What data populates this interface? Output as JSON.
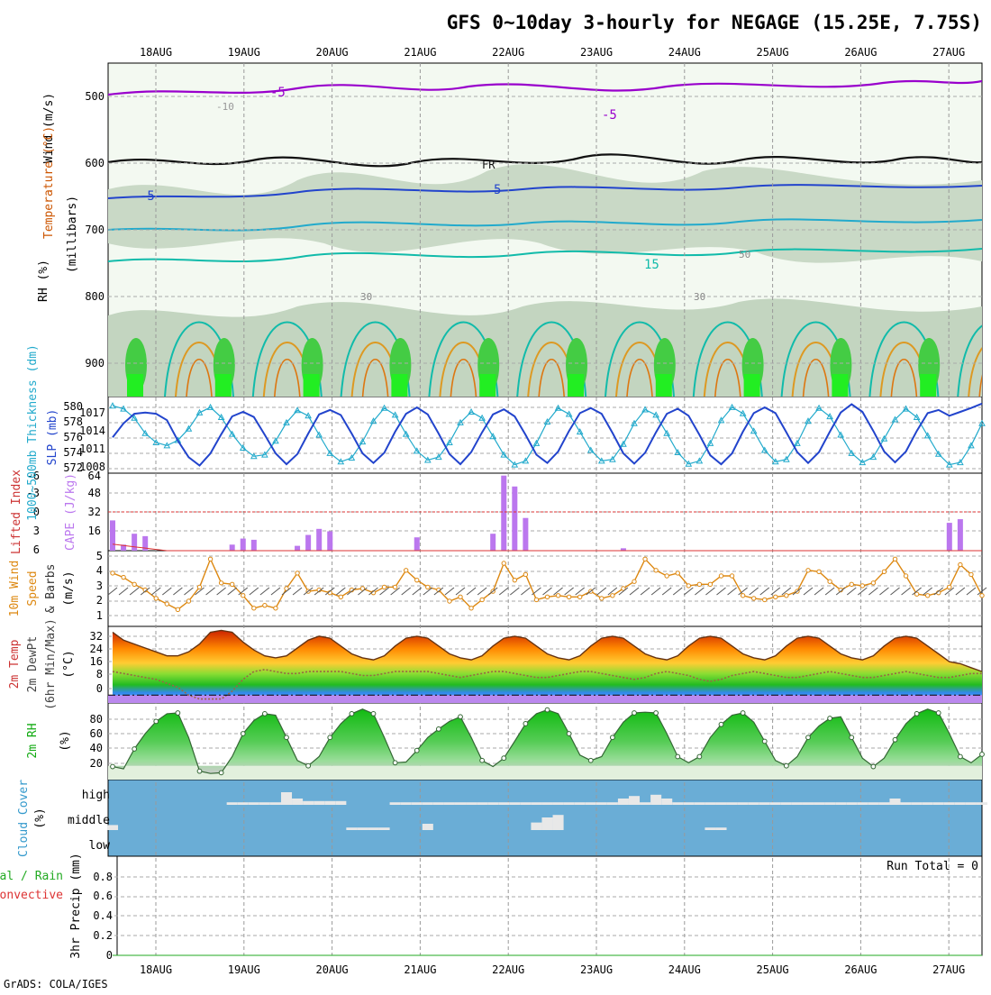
{
  "title": "GFS 0~10day 3-hourly for NEGAGE (15.25E, 7.75S)",
  "footer": "GrADS: COLA/IGES",
  "colors": {
    "rh_green": "#33cc33",
    "rh_light": "#e6f2e1",
    "rh_gray": "#bfcfbf",
    "purple": "#9900cc",
    "blue": "#2244cc",
    "cyan": "#22aacc",
    "teal": "#11bbaa",
    "orange": "#dd8811",
    "red": "#dd3333",
    "cloud_bg": "#6aadd6",
    "violet": "#bb77ee"
  },
  "x_dates": [
    "18AUG",
    "19AUG",
    "20AUG",
    "21AUG",
    "22AUG",
    "23AUG",
    "24AUG",
    "25AUG",
    "26AUG",
    "27AUG"
  ],
  "panel1": {
    "labels": {
      "wind": "Wind (m/s)",
      "temp": "Temperature (°C)",
      "rh": "RH (%)",
      "units": "(millibars)"
    },
    "y_ticks": [
      "500",
      "600",
      "700",
      "800",
      "900"
    ],
    "contour_labels": [
      "-5",
      "-10",
      "-5",
      "FR",
      "5",
      "15",
      "30",
      "50",
      "30",
      "-5"
    ]
  },
  "panel2": {
    "labels": {
      "thick": "1000~500mb Thickness (dm)",
      "slp": "SLP (mb)"
    },
    "left_ticks": [
      "580",
      "578",
      "576",
      "574",
      "572"
    ],
    "right_ticks": [
      "1017",
      "1014",
      "1011",
      "1008"
    ]
  },
  "panel3": {
    "labels": {
      "li": "Lifted Index",
      "cape": "CAPE (J/kg)"
    },
    "left_ticks": [
      "-6",
      "-3",
      "0",
      "3",
      "6"
    ],
    "right_ticks": [
      "64",
      "48",
      "32",
      "16"
    ]
  },
  "panel4": {
    "labels": {
      "wind": "10m Wind",
      "speed": "Speed",
      "barbs": "& Barbs",
      "units": "(m/s)"
    },
    "y_ticks": [
      "5",
      "4",
      "3",
      "2",
      "1"
    ]
  },
  "panel5": {
    "labels": {
      "temp": "2m Temp",
      "dew": "2m DewPt",
      "minmax": "(6hr Min/Max)",
      "units": "(°C)"
    },
    "y_ticks": [
      "32",
      "24",
      "16",
      "8",
      "0"
    ]
  },
  "panel6": {
    "labels": {
      "rh": "2m RH",
      "units": "(%)"
    },
    "y_ticks": [
      "80",
      "60",
      "40",
      "20"
    ]
  },
  "panel7": {
    "labels": {
      "cc": "Cloud Cover",
      "units": "(%)"
    },
    "levels": [
      "high",
      "middle",
      "low"
    ]
  },
  "panel8": {
    "labels": {
      "total": "Total / Rain",
      "conv": "Convective",
      "precip": "3hr Precip (mm)"
    },
    "run_total": "Run Total = 0",
    "y_ticks": [
      "0.8",
      "0.6",
      "0.4",
      "0.2",
      "0"
    ]
  },
  "chart_data": {
    "type": "line",
    "time_step_hours": 3,
    "n_steps": 81,
    "x_range_days": [
      0,
      10
    ],
    "thickness_dm": [
      579.8,
      579.4,
      578.2,
      576.2,
      575.0,
      574.6,
      575.3,
      576.8,
      578.9,
      579.6,
      578.3,
      576.1,
      574.3,
      573.2,
      573.4,
      575.2,
      577.6,
      579.2,
      578.5,
      576.0,
      573.6,
      572.5,
      573.0,
      575.1,
      577.8,
      579.5,
      578.6,
      576.1,
      573.9,
      572.7,
      573.1,
      575.0,
      577.6,
      579.0,
      578.2,
      575.8,
      573.4,
      572.1,
      572.6,
      574.9,
      577.7,
      579.5,
      578.7,
      576.4,
      574.0,
      572.6,
      572.8,
      574.8,
      577.5,
      579.3,
      578.6,
      576.2,
      573.7,
      572.2,
      572.6,
      574.9,
      577.9,
      579.6,
      578.8,
      576.5,
      574.0,
      572.5,
      572.8,
      574.9,
      577.8,
      579.5,
      578.4,
      576.0,
      573.6,
      572.4,
      573.1,
      575.5,
      578.0,
      579.4,
      578.3,
      575.9,
      573.5,
      572.1,
      572.4,
      574.6,
      577.5
    ],
    "slp_mb": [
      1012.6,
      1014.8,
      1016.3,
      1016.5,
      1016.3,
      1015.3,
      1012.1,
      1009.5,
      1008.2,
      1010.1,
      1013.1,
      1015.9,
      1016.6,
      1015.8,
      1013.0,
      1010.1,
      1008.4,
      1010.0,
      1013.2,
      1016.2,
      1016.9,
      1016.1,
      1013.2,
      1010.1,
      1008.6,
      1010.2,
      1013.5,
      1016.3,
      1017.3,
      1016.2,
      1013.2,
      1010.0,
      1008.4,
      1010.3,
      1013.4,
      1016.2,
      1017.0,
      1015.9,
      1013.0,
      1009.9,
      1008.6,
      1010.4,
      1013.6,
      1016.4,
      1017.2,
      1016.3,
      1013.3,
      1010.1,
      1008.5,
      1010.2,
      1013.4,
      1016.3,
      1017.1,
      1016.0,
      1013.0,
      1009.8,
      1008.4,
      1010.1,
      1013.5,
      1016.4,
      1017.3,
      1016.4,
      1013.4,
      1010.3,
      1008.6,
      1010.3,
      1013.5,
      1016.5,
      1017.8,
      1016.6,
      1013.6,
      1010.4,
      1008.7,
      1010.4,
      1013.6,
      1016.4,
      1016.9,
      1016.0,
      1016.6,
      1017.2,
      1017.9
    ],
    "lifted_index": [
      5.0,
      5.2,
      5.4,
      5.6,
      5.8,
      6.0,
      6.0,
      6.0,
      6.0,
      6.0,
      6.0,
      6.0,
      6.0,
      6.0,
      6.0,
      6.0,
      6.0,
      6.0,
      6.0,
      6.0,
      6.0,
      6.0,
      6.0,
      6.0,
      6.0,
      6.0,
      6.0,
      6.0,
      6.0,
      6.0,
      6.0,
      6.0,
      6.0,
      6.0,
      6.0,
      6.0,
      6.0,
      6.0,
      6.0,
      6.0,
      6.0,
      6.0,
      6.0,
      6.0,
      6.0,
      6.0,
      6.0,
      6.0,
      6.0,
      6.0,
      6.0,
      6.0,
      6.0,
      6.0,
      6.0,
      6.0,
      6.0,
      6.0,
      6.0,
      6.0,
      6.0,
      6.0,
      6.0,
      6.0,
      6.0,
      6.0,
      6.0,
      6.0,
      6.0,
      6.0,
      6.0,
      6.0,
      6.0,
      6.0,
      6.0,
      6.0,
      6.0,
      6.0,
      6.0,
      6.0,
      6.0
    ],
    "cape_jkg": [
      25,
      5,
      14,
      12,
      0,
      0,
      0,
      0,
      0,
      0,
      0,
      5,
      10,
      9,
      0,
      0,
      0,
      4,
      13,
      18,
      16,
      0,
      0,
      0,
      0,
      0,
      0,
      0,
      11,
      0,
      0,
      0,
      0,
      0,
      0,
      14,
      62,
      53,
      27,
      0,
      0,
      0,
      0,
      0,
      0,
      0,
      0,
      2,
      0,
      0,
      0,
      0,
      0,
      0,
      0,
      0,
      0,
      0,
      0,
      0,
      0,
      0,
      0,
      0,
      0,
      0,
      0,
      0,
      0,
      0,
      0,
      0,
      0,
      0,
      0,
      0,
      0,
      23,
      26,
      0,
      0
    ],
    "wind_speed_ms": [
      3.8,
      3.5,
      3.0,
      2.6,
      2.0,
      1.6,
      1.2,
      1.8,
      2.8,
      4.8,
      3.1,
      3.0,
      2.2,
      1.3,
      1.5,
      1.3,
      2.7,
      3.8,
      2.5,
      2.6,
      2.4,
      2.1,
      2.6,
      2.7,
      2.4,
      2.8,
      2.8,
      4.0,
      3.3,
      2.8,
      2.6,
      1.8,
      2.1,
      1.3,
      1.9,
      2.5,
      4.5,
      3.3,
      3.7,
      1.9,
      2.1,
      2.2,
      2.1,
      2.1,
      2.5,
      2.0,
      2.2,
      2.7,
      3.2,
      4.8,
      4.0,
      3.6,
      3.8,
      2.9,
      3.0,
      3.0,
      3.6,
      3.6,
      2.2,
      2.0,
      1.9,
      2.1,
      2.2,
      2.5,
      4.0,
      3.9,
      3.2,
      2.6,
      3.0,
      2.9,
      3.1,
      3.9,
      4.8,
      3.6,
      2.3,
      2.2,
      2.4,
      2.8,
      4.4,
      3.7,
      2.2
    ],
    "temp_2m_c": [
      32,
      28,
      26,
      24,
      22,
      20,
      20,
      22,
      26,
      32,
      33,
      32,
      27,
      23,
      20,
      19,
      20,
      24,
      28,
      30,
      29,
      25,
      21,
      19,
      18,
      20,
      25,
      29,
      30,
      29,
      25,
      21,
      19,
      18,
      20,
      25,
      29,
      30,
      29,
      25,
      21,
      19,
      18,
      20,
      25,
      29,
      30,
      29,
      25,
      21,
      19,
      18,
      20,
      25,
      29,
      30,
      29,
      25,
      21,
      19,
      18,
      20,
      25,
      29,
      30,
      29,
      25,
      21,
      19,
      18,
      20,
      25,
      29,
      30,
      29,
      25,
      21,
      17,
      16,
      14,
      12
    ],
    "dewpt_2m_c": [
      12,
      11,
      10,
      9,
      8,
      6,
      4,
      0,
      -2,
      -2,
      -2,
      2,
      8,
      12,
      13,
      12,
      11,
      11,
      12,
      12,
      12,
      12,
      11,
      10,
      10,
      11,
      12,
      12,
      12,
      12,
      11,
      10,
      9,
      10,
      11,
      12,
      12,
      11,
      10,
      9,
      9,
      10,
      11,
      12,
      12,
      11,
      10,
      9,
      8,
      9,
      11,
      12,
      11,
      10,
      8,
      7,
      8,
      10,
      11,
      12,
      11,
      10,
      9,
      9,
      10,
      11,
      12,
      11,
      10,
      9,
      9,
      10,
      11,
      12,
      11,
      10,
      9,
      9,
      10,
      11,
      11
    ],
    "rh_2m_pct": [
      17,
      14,
      40,
      60,
      76,
      86,
      87,
      55,
      11,
      8,
      9,
      30,
      60,
      77,
      86,
      84,
      55,
      25,
      18,
      30,
      55,
      73,
      86,
      92,
      86,
      55,
      22,
      23,
      38,
      55,
      66,
      76,
      82,
      55,
      25,
      17,
      28,
      50,
      73,
      86,
      91,
      86,
      60,
      32,
      25,
      30,
      55,
      75,
      87,
      88,
      87,
      60,
      30,
      22,
      30,
      55,
      72,
      84,
      87,
      75,
      50,
      25,
      18,
      30,
      55,
      70,
      80,
      82,
      55,
      28,
      17,
      28,
      52,
      73,
      86,
      92,
      87,
      60,
      30,
      22,
      33
    ],
    "cloud_high_pct": [
      0,
      0,
      0,
      0,
      0,
      0,
      0,
      0,
      0,
      0,
      0,
      10,
      10,
      10,
      10,
      10,
      50,
      25,
      15,
      15,
      15,
      15,
      0,
      0,
      0,
      0,
      10,
      10,
      10,
      10,
      10,
      10,
      10,
      10,
      10,
      10,
      10,
      10,
      10,
      10,
      10,
      10,
      10,
      10,
      10,
      10,
      10,
      25,
      35,
      10,
      40,
      25,
      10,
      10,
      10,
      10,
      10,
      10,
      10,
      10,
      10,
      10,
      10,
      10,
      10,
      10,
      10,
      10,
      10,
      10,
      10,
      10,
      25,
      10,
      10,
      10,
      10,
      10,
      10,
      10,
      10
    ],
    "cloud_mid_pct": [
      20,
      0,
      0,
      0,
      0,
      0,
      0,
      0,
      0,
      0,
      0,
      0,
      0,
      0,
      0,
      0,
      0,
      0,
      0,
      0,
      0,
      0,
      10,
      10,
      10,
      10,
      0,
      0,
      0,
      25,
      0,
      0,
      0,
      0,
      0,
      0,
      0,
      0,
      0,
      30,
      50,
      60,
      0,
      0,
      0,
      0,
      0,
      0,
      0,
      0,
      0,
      0,
      0,
      0,
      0,
      10,
      10,
      0,
      0,
      0,
      0,
      0,
      0,
      0,
      0,
      0,
      0,
      0,
      0,
      0,
      0,
      0,
      0,
      0,
      0,
      0,
      0,
      0,
      0,
      0,
      0
    ],
    "cloud_low_pct": [
      0,
      0,
      0,
      0,
      0,
      0,
      0,
      0,
      0,
      0,
      0,
      0,
      0,
      0,
      0,
      0,
      0,
      0,
      0,
      0,
      0,
      0,
      0,
      0,
      0,
      0,
      0,
      0,
      0,
      0,
      0,
      0,
      0,
      0,
      0,
      0,
      0,
      0,
      0,
      0,
      0,
      0,
      0,
      0,
      0,
      0,
      0,
      0,
      0,
      0,
      0,
      0,
      0,
      0,
      0,
      0,
      0,
      0,
      0,
      0,
      0,
      0,
      0,
      0,
      0,
      0,
      0,
      0,
      0,
      0,
      0,
      0,
      0,
      0,
      0,
      0,
      0,
      0,
      0,
      0,
      0
    ],
    "precip_mm": [
      0,
      0,
      0,
      0,
      0,
      0,
      0,
      0,
      0,
      0,
      0,
      0,
      0,
      0,
      0,
      0,
      0,
      0,
      0,
      0,
      0,
      0,
      0,
      0,
      0,
      0,
      0,
      0,
      0,
      0,
      0,
      0,
      0,
      0,
      0,
      0,
      0,
      0,
      0,
      0,
      0,
      0,
      0,
      0,
      0,
      0,
      0,
      0,
      0,
      0,
      0,
      0,
      0,
      0,
      0,
      0,
      0,
      0,
      0,
      0,
      0,
      0,
      0,
      0,
      0,
      0,
      0,
      0,
      0,
      0,
      0,
      0,
      0,
      0,
      0,
      0,
      0,
      0,
      0,
      0,
      0
    ]
  }
}
